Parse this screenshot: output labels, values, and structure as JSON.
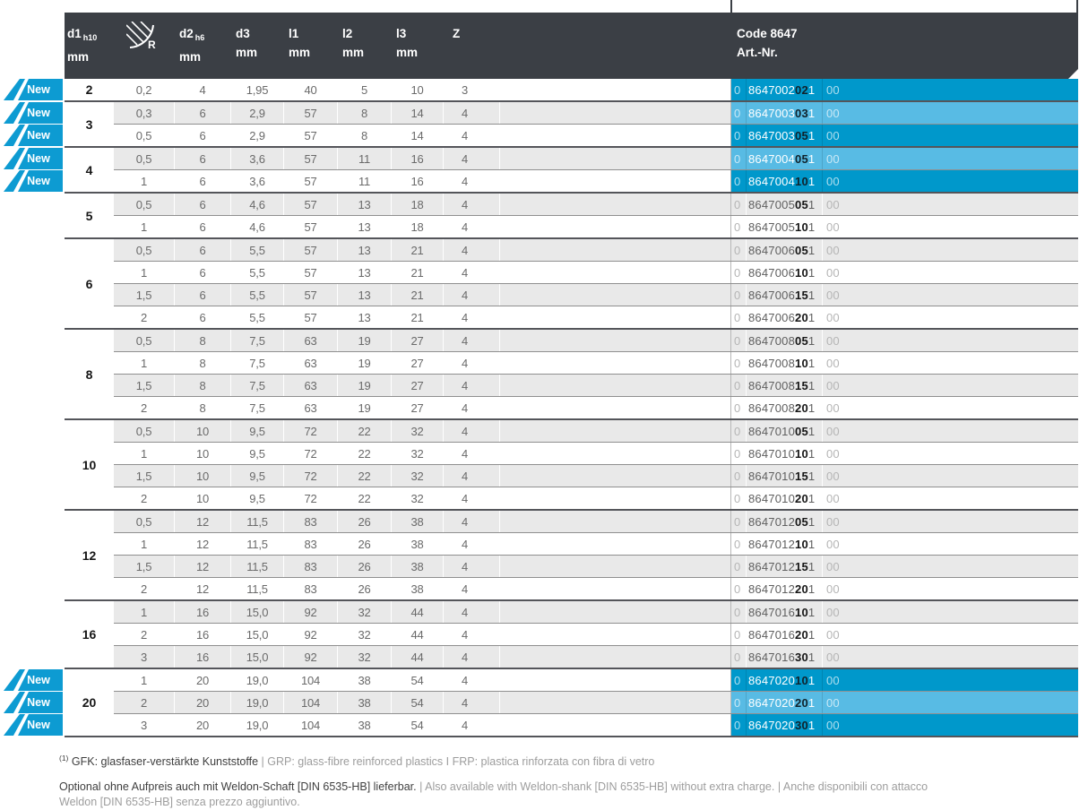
{
  "colors": {
    "header_bg": "#3b3f45",
    "highlight_dark": "#0098cb",
    "highlight_light": "#58bbe4",
    "badge_blue": "#0d9bd2",
    "row_alt": "#e9e9e9",
    "group_border": "#54555a",
    "row_border": "#8f8f8f"
  },
  "table": {
    "badge_label": "New",
    "columns": [
      {
        "label": "d1",
        "sub": "h10",
        "unit": "mm"
      },
      {
        "label": "R",
        "icon": "radius-icon"
      },
      {
        "label": "d2",
        "sub": "h6",
        "unit": "mm"
      },
      {
        "label": "d3",
        "unit": "mm"
      },
      {
        "label": "l1",
        "unit": "mm"
      },
      {
        "label": "l2",
        "unit": "mm"
      },
      {
        "label": "l3",
        "unit": "mm"
      },
      {
        "label": "Z",
        "unit": ""
      },
      {
        "label": "Code 8647",
        "unit": "Art.-Nr."
      }
    ],
    "groups": [
      {
        "d1": "2",
        "rows": [
          {
            "vals": [
              "0,2",
              "4",
              "1,95",
              "40",
              "5",
              "10",
              "3"
            ],
            "art": [
              "0",
              "8647002",
              "02",
              "1",
              "00"
            ],
            "new": true
          }
        ]
      },
      {
        "d1": "3",
        "rows": [
          {
            "vals": [
              "0,3",
              "6",
              "2,9",
              "57",
              "8",
              "14",
              "4"
            ],
            "art": [
              "0",
              "8647003",
              "03",
              "1",
              "00"
            ],
            "new": true
          },
          {
            "vals": [
              "0,5",
              "6",
              "2,9",
              "57",
              "8",
              "14",
              "4"
            ],
            "art": [
              "0",
              "8647003",
              "05",
              "1",
              "00"
            ],
            "new": true
          }
        ]
      },
      {
        "d1": "4",
        "rows": [
          {
            "vals": [
              "0,5",
              "6",
              "3,6",
              "57",
              "11",
              "16",
              "4"
            ],
            "art": [
              "0",
              "8647004",
              "05",
              "1",
              "00"
            ],
            "new": true
          },
          {
            "vals": [
              "1",
              "6",
              "3,6",
              "57",
              "11",
              "16",
              "4"
            ],
            "art": [
              "0",
              "8647004",
              "10",
              "1",
              "00"
            ],
            "new": true
          }
        ]
      },
      {
        "d1": "5",
        "rows": [
          {
            "vals": [
              "0,5",
              "6",
              "4,6",
              "57",
              "13",
              "18",
              "4"
            ],
            "art": [
              "0",
              "8647005",
              "05",
              "1",
              "00"
            ],
            "new": false
          },
          {
            "vals": [
              "1",
              "6",
              "4,6",
              "57",
              "13",
              "18",
              "4"
            ],
            "art": [
              "0",
              "8647005",
              "10",
              "1",
              "00"
            ],
            "new": false
          }
        ]
      },
      {
        "d1": "6",
        "rows": [
          {
            "vals": [
              "0,5",
              "6",
              "5,5",
              "57",
              "13",
              "21",
              "4"
            ],
            "art": [
              "0",
              "8647006",
              "05",
              "1",
              "00"
            ],
            "new": false
          },
          {
            "vals": [
              "1",
              "6",
              "5,5",
              "57",
              "13",
              "21",
              "4"
            ],
            "art": [
              "0",
              "8647006",
              "10",
              "1",
              "00"
            ],
            "new": false
          },
          {
            "vals": [
              "1,5",
              "6",
              "5,5",
              "57",
              "13",
              "21",
              "4"
            ],
            "art": [
              "0",
              "8647006",
              "15",
              "1",
              "00"
            ],
            "new": false
          },
          {
            "vals": [
              "2",
              "6",
              "5,5",
              "57",
              "13",
              "21",
              "4"
            ],
            "art": [
              "0",
              "8647006",
              "20",
              "1",
              "00"
            ],
            "new": false
          }
        ]
      },
      {
        "d1": "8",
        "rows": [
          {
            "vals": [
              "0,5",
              "8",
              "7,5",
              "63",
              "19",
              "27",
              "4"
            ],
            "art": [
              "0",
              "8647008",
              "05",
              "1",
              "00"
            ],
            "new": false
          },
          {
            "vals": [
              "1",
              "8",
              "7,5",
              "63",
              "19",
              "27",
              "4"
            ],
            "art": [
              "0",
              "8647008",
              "10",
              "1",
              "00"
            ],
            "new": false
          },
          {
            "vals": [
              "1,5",
              "8",
              "7,5",
              "63",
              "19",
              "27",
              "4"
            ],
            "art": [
              "0",
              "8647008",
              "15",
              "1",
              "00"
            ],
            "new": false
          },
          {
            "vals": [
              "2",
              "8",
              "7,5",
              "63",
              "19",
              "27",
              "4"
            ],
            "art": [
              "0",
              "8647008",
              "20",
              "1",
              "00"
            ],
            "new": false
          }
        ]
      },
      {
        "d1": "10",
        "rows": [
          {
            "vals": [
              "0,5",
              "10",
              "9,5",
              "72",
              "22",
              "32",
              "4"
            ],
            "art": [
              "0",
              "8647010",
              "05",
              "1",
              "00"
            ],
            "new": false
          },
          {
            "vals": [
              "1",
              "10",
              "9,5",
              "72",
              "22",
              "32",
              "4"
            ],
            "art": [
              "0",
              "8647010",
              "10",
              "1",
              "00"
            ],
            "new": false
          },
          {
            "vals": [
              "1,5",
              "10",
              "9,5",
              "72",
              "22",
              "32",
              "4"
            ],
            "art": [
              "0",
              "8647010",
              "15",
              "1",
              "00"
            ],
            "new": false
          },
          {
            "vals": [
              "2",
              "10",
              "9,5",
              "72",
              "22",
              "32",
              "4"
            ],
            "art": [
              "0",
              "8647010",
              "20",
              "1",
              "00"
            ],
            "new": false
          }
        ]
      },
      {
        "d1": "12",
        "rows": [
          {
            "vals": [
              "0,5",
              "12",
              "11,5",
              "83",
              "26",
              "38",
              "4"
            ],
            "art": [
              "0",
              "8647012",
              "05",
              "1",
              "00"
            ],
            "new": false
          },
          {
            "vals": [
              "1",
              "12",
              "11,5",
              "83",
              "26",
              "38",
              "4"
            ],
            "art": [
              "0",
              "8647012",
              "10",
              "1",
              "00"
            ],
            "new": false
          },
          {
            "vals": [
              "1,5",
              "12",
              "11,5",
              "83",
              "26",
              "38",
              "4"
            ],
            "art": [
              "0",
              "8647012",
              "15",
              "1",
              "00"
            ],
            "new": false
          },
          {
            "vals": [
              "2",
              "12",
              "11,5",
              "83",
              "26",
              "38",
              "4"
            ],
            "art": [
              "0",
              "8647012",
              "20",
              "1",
              "00"
            ],
            "new": false
          }
        ]
      },
      {
        "d1": "16",
        "rows": [
          {
            "vals": [
              "1",
              "16",
              "15,0",
              "92",
              "32",
              "44",
              "4"
            ],
            "art": [
              "0",
              "8647016",
              "10",
              "1",
              "00"
            ],
            "new": false
          },
          {
            "vals": [
              "2",
              "16",
              "15,0",
              "92",
              "32",
              "44",
              "4"
            ],
            "art": [
              "0",
              "8647016",
              "20",
              "1",
              "00"
            ],
            "new": false
          },
          {
            "vals": [
              "3",
              "16",
              "15,0",
              "92",
              "32",
              "44",
              "4"
            ],
            "art": [
              "0",
              "8647016",
              "30",
              "1",
              "00"
            ],
            "new": false
          }
        ]
      },
      {
        "d1": "20",
        "rows": [
          {
            "vals": [
              "1",
              "20",
              "19,0",
              "104",
              "38",
              "54",
              "4"
            ],
            "art": [
              "0",
              "8647020",
              "10",
              "1",
              "00"
            ],
            "new": true
          },
          {
            "vals": [
              "2",
              "20",
              "19,0",
              "104",
              "38",
              "54",
              "4"
            ],
            "art": [
              "0",
              "8647020",
              "20",
              "1",
              "00"
            ],
            "new": true
          },
          {
            "vals": [
              "3",
              "20",
              "19,0",
              "104",
              "38",
              "54",
              "4"
            ],
            "art": [
              "0",
              "8647020",
              "30",
              "1",
              "00"
            ],
            "new": true
          }
        ]
      }
    ]
  },
  "footnotes": {
    "marker": "(1)",
    "line1_dark": "GFK: glasfaser-verstärkte Kunststoffe ",
    "line1_light": "| GRP: glass-fibre reinforced plastics I FRP: plastica rinforzata con fibra di vetro",
    "line2_dark": "Optional ohne Aufpreis auch mit Weldon-Schaft [DIN 6535-HB] lieferbar. ",
    "line2_light": "| Also available with Weldon-shank [DIN 6535-HB] without extra charge. | Anche disponibili con attacco Weldon [DIN 6535-HB] senza prezzo aggiuntivo."
  }
}
